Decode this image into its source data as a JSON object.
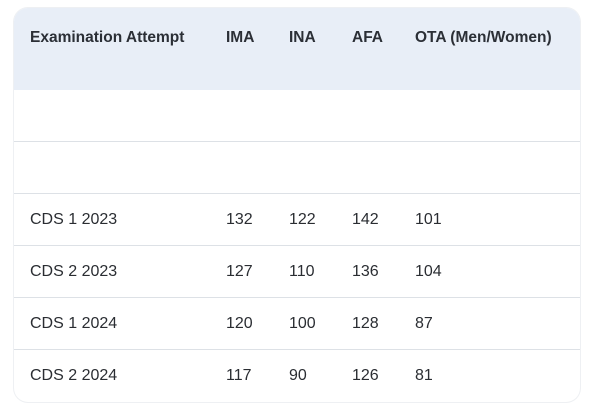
{
  "table": {
    "header": [
      "Examination Attempt",
      "IMA",
      "INA",
      "AFA",
      "OTA (Men/Women)"
    ],
    "rows": [
      [
        "CDS 1 2023",
        132,
        122,
        142,
        101
      ],
      [
        "CDS 2 2023",
        127,
        110,
        136,
        104
      ],
      [
        "CDS 1 2024",
        120,
        100,
        128,
        87
      ],
      [
        "CDS 2 2024",
        117,
        90,
        126,
        81
      ]
    ]
  }
}
